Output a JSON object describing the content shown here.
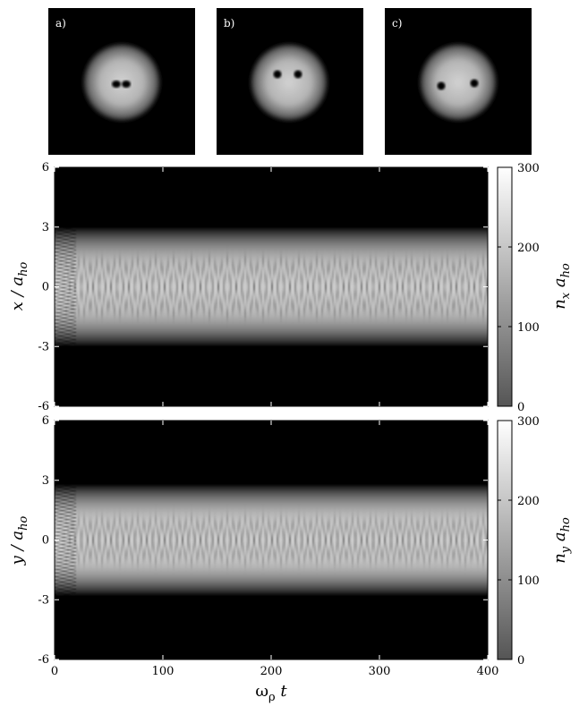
{
  "snapshots": [
    {
      "label": "a)"
    },
    {
      "label": "b)"
    },
    {
      "label": "c)"
    }
  ],
  "chart_data": [
    {
      "type": "heatmap",
      "quantity": "n_x a_ho",
      "ylabel": "x / a_ho",
      "ylabel_parts": {
        "main": "x / a",
        "sub": "ho"
      },
      "xlim": [
        0,
        400
      ],
      "ylim": [
        -6,
        6
      ],
      "yticks": [
        -6,
        -3,
        0,
        3,
        6
      ],
      "colorbar": {
        "range": [
          0,
          300
        ],
        "ticks": [
          0,
          100,
          200,
          300
        ],
        "colormap": "grayscale"
      },
      "colorbar_label": {
        "main": "n",
        "sub": "x",
        "tail": " a",
        "tail_sub": "ho"
      },
      "profile": {
        "central_value": 235,
        "half_width": 3.0,
        "oscillation_period": 11,
        "dip_amplitude": 1.3
      }
    },
    {
      "type": "heatmap",
      "quantity": "n_y a_ho",
      "ylabel": "y / a_ho",
      "ylabel_parts": {
        "main": "y / a",
        "sub": "ho"
      },
      "xlim": [
        0,
        400
      ],
      "ylim": [
        -6,
        6
      ],
      "yticks": [
        -6,
        -3,
        0,
        3,
        6
      ],
      "xticks": [
        0,
        100,
        200,
        300,
        400
      ],
      "xlabel": "ω_ρ t",
      "xlabel_parts": {
        "main": "ω",
        "sub": "ρ",
        "tail": " t"
      },
      "colorbar": {
        "range": [
          0,
          300
        ],
        "ticks": [
          0,
          100,
          200,
          300
        ],
        "colormap": "grayscale"
      },
      "colorbar_label": {
        "main": "n",
        "sub": "y",
        "tail": " a",
        "tail_sub": "ho"
      },
      "profile": {
        "central_value": 240,
        "half_width": 2.8,
        "oscillation_period": 11,
        "dip_amplitude": 1.0
      }
    }
  ]
}
